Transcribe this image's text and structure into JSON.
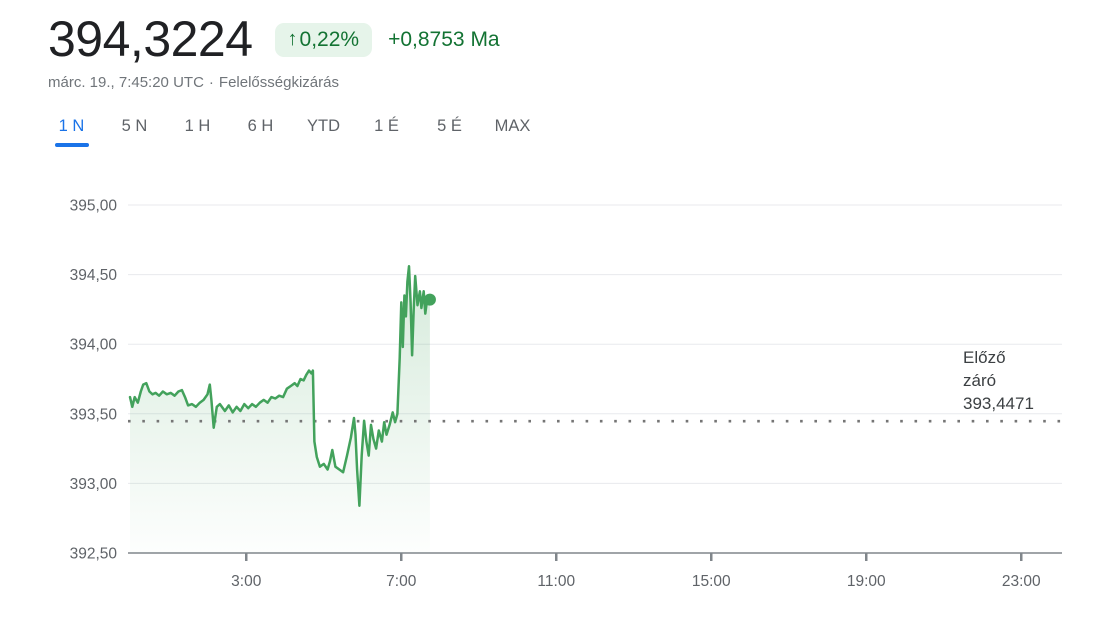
{
  "header": {
    "price": "394,3224",
    "change_arrow": "↑",
    "change_percent": "0,22%",
    "change_value": "+0,8753",
    "change_period": "Ma",
    "timestamp": "márc. 19., 7:45:20 UTC",
    "separator": "·",
    "disclaimer": "Felelősségkizárás"
  },
  "tabs": [
    {
      "label": "1 N",
      "active": true
    },
    {
      "label": "5 N",
      "active": false
    },
    {
      "label": "1 H",
      "active": false
    },
    {
      "label": "6 H",
      "active": false
    },
    {
      "label": "YTD",
      "active": false
    },
    {
      "label": "1 É",
      "active": false
    },
    {
      "label": "5 É",
      "active": false
    },
    {
      "label": "MAX",
      "active": false
    }
  ],
  "colors": {
    "price_text": "#202124",
    "positive_green": "#137333",
    "badge_bg": "#e6f4ea",
    "active_tab_blue": "#1a73e8",
    "line_green": "#43a25c",
    "grid": "#e8eaed",
    "axis": "#80868b",
    "tick_label": "#5f6368",
    "dotted_line": "#757575",
    "prev_label_text": "#3c4043"
  },
  "chart_data": {
    "type": "line",
    "title": "1-day price chart",
    "xlabel": "",
    "ylabel": "",
    "x_unit": "hour_of_day",
    "xlim": [
      0,
      24
    ],
    "ylim": [
      392.5,
      395.0
    ],
    "grid": true,
    "x_ticks": [
      {
        "t": 3,
        "label": "3:00"
      },
      {
        "t": 7,
        "label": "7:00"
      },
      {
        "t": 11,
        "label": "11:00"
      },
      {
        "t": 15,
        "label": "15:00"
      },
      {
        "t": 19,
        "label": "19:00"
      },
      {
        "t": 23,
        "label": "23:00"
      }
    ],
    "y_ticks": [
      {
        "v": 395.0,
        "label": "395,00"
      },
      {
        "v": 394.5,
        "label": "394,50"
      },
      {
        "v": 394.0,
        "label": "394,00"
      },
      {
        "v": 393.5,
        "label": "393,50"
      },
      {
        "v": 393.0,
        "label": "393,00"
      },
      {
        "v": 392.5,
        "label": "392,50"
      }
    ],
    "previous_close": {
      "value": 393.4471,
      "label_lines": [
        "Előző",
        "záró",
        "393,4471"
      ]
    },
    "last_point_marker": true,
    "series": [
      {
        "name": "price",
        "points": [
          [
            0.0,
            393.62
          ],
          [
            0.06,
            393.55
          ],
          [
            0.12,
            393.62
          ],
          [
            0.2,
            393.58
          ],
          [
            0.28,
            393.66
          ],
          [
            0.34,
            393.71
          ],
          [
            0.42,
            393.72
          ],
          [
            0.5,
            393.66
          ],
          [
            0.58,
            393.64
          ],
          [
            0.66,
            393.65
          ],
          [
            0.75,
            393.63
          ],
          [
            0.85,
            393.66
          ],
          [
            0.95,
            393.64
          ],
          [
            1.05,
            393.65
          ],
          [
            1.15,
            393.63
          ],
          [
            1.25,
            393.66
          ],
          [
            1.34,
            393.67
          ],
          [
            1.42,
            393.62
          ],
          [
            1.5,
            393.56
          ],
          [
            1.6,
            393.57
          ],
          [
            1.7,
            393.55
          ],
          [
            1.8,
            393.58
          ],
          [
            1.9,
            393.6
          ],
          [
            2.0,
            393.64
          ],
          [
            2.06,
            393.71
          ],
          [
            2.1,
            393.6
          ],
          [
            2.16,
            393.4
          ],
          [
            2.24,
            393.55
          ],
          [
            2.32,
            393.57
          ],
          [
            2.45,
            393.52
          ],
          [
            2.55,
            393.56
          ],
          [
            2.65,
            393.51
          ],
          [
            2.75,
            393.55
          ],
          [
            2.85,
            393.52
          ],
          [
            2.95,
            393.57
          ],
          [
            3.05,
            393.54
          ],
          [
            3.15,
            393.57
          ],
          [
            3.25,
            393.55
          ],
          [
            3.35,
            393.58
          ],
          [
            3.45,
            393.6
          ],
          [
            3.55,
            393.58
          ],
          [
            3.65,
            393.62
          ],
          [
            3.75,
            393.61
          ],
          [
            3.85,
            393.63
          ],
          [
            3.95,
            393.62
          ],
          [
            4.05,
            393.68
          ],
          [
            4.15,
            393.7
          ],
          [
            4.25,
            393.72
          ],
          [
            4.32,
            393.7
          ],
          [
            4.4,
            393.75
          ],
          [
            4.48,
            393.74
          ],
          [
            4.55,
            393.78
          ],
          [
            4.62,
            393.81
          ],
          [
            4.68,
            393.79
          ],
          [
            4.72,
            393.81
          ],
          [
            4.76,
            393.3
          ],
          [
            4.82,
            393.19
          ],
          [
            4.9,
            393.12
          ],
          [
            5.0,
            393.14
          ],
          [
            5.1,
            393.1
          ],
          [
            5.16,
            393.16
          ],
          [
            5.22,
            393.24
          ],
          [
            5.3,
            393.12
          ],
          [
            5.4,
            393.1
          ],
          [
            5.5,
            393.08
          ],
          [
            5.6,
            393.2
          ],
          [
            5.7,
            393.33
          ],
          [
            5.78,
            393.47
          ],
          [
            5.82,
            393.35
          ],
          [
            5.86,
            393.1
          ],
          [
            5.92,
            392.84
          ],
          [
            5.98,
            393.2
          ],
          [
            6.04,
            393.45
          ],
          [
            6.1,
            393.3
          ],
          [
            6.16,
            393.2
          ],
          [
            6.22,
            393.42
          ],
          [
            6.28,
            393.32
          ],
          [
            6.35,
            393.25
          ],
          [
            6.42,
            393.38
          ],
          [
            6.5,
            393.3
          ],
          [
            6.56,
            393.44
          ],
          [
            6.62,
            393.35
          ],
          [
            6.7,
            393.42
          ],
          [
            6.78,
            393.51
          ],
          [
            6.84,
            393.44
          ],
          [
            6.9,
            393.5
          ],
          [
            6.96,
            393.9
          ],
          [
            7.0,
            394.3
          ],
          [
            7.04,
            393.98
          ],
          [
            7.08,
            394.35
          ],
          [
            7.12,
            394.2
          ],
          [
            7.16,
            394.45
          ],
          [
            7.2,
            394.56
          ],
          [
            7.24,
            394.3
          ],
          [
            7.28,
            393.92
          ],
          [
            7.32,
            394.25
          ],
          [
            7.36,
            394.49
          ],
          [
            7.42,
            394.28
          ],
          [
            7.48,
            394.38
          ],
          [
            7.52,
            394.26
          ],
          [
            7.58,
            394.38
          ],
          [
            7.62,
            394.22
          ],
          [
            7.68,
            394.35
          ],
          [
            7.74,
            394.32
          ]
        ]
      }
    ]
  }
}
